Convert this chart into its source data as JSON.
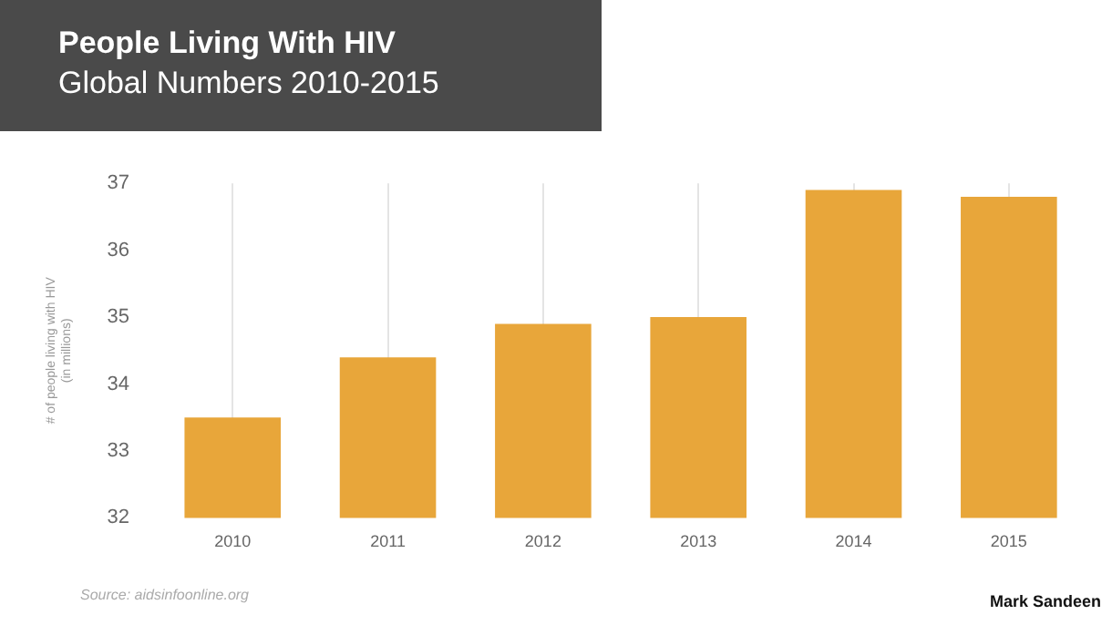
{
  "chart_data": {
    "type": "bar",
    "title": "People Living With HIV",
    "subtitle": "Global Numbers 2010-2015",
    "ylabel": "# of people living with HIV\n(in millions)",
    "categories": [
      "2010",
      "2011",
      "2012",
      "2013",
      "2014",
      "2015"
    ],
    "values": [
      33.5,
      34.4,
      34.9,
      35.0,
      36.9,
      36.8
    ],
    "color": "#e8a63a",
    "ylim": [
      32,
      37
    ],
    "yticks": [
      32,
      33,
      34,
      35,
      36,
      37
    ],
    "grid": "x",
    "annotations": [
      "Source: aidsinfoonline.org",
      "Mark Sandeen"
    ]
  }
}
